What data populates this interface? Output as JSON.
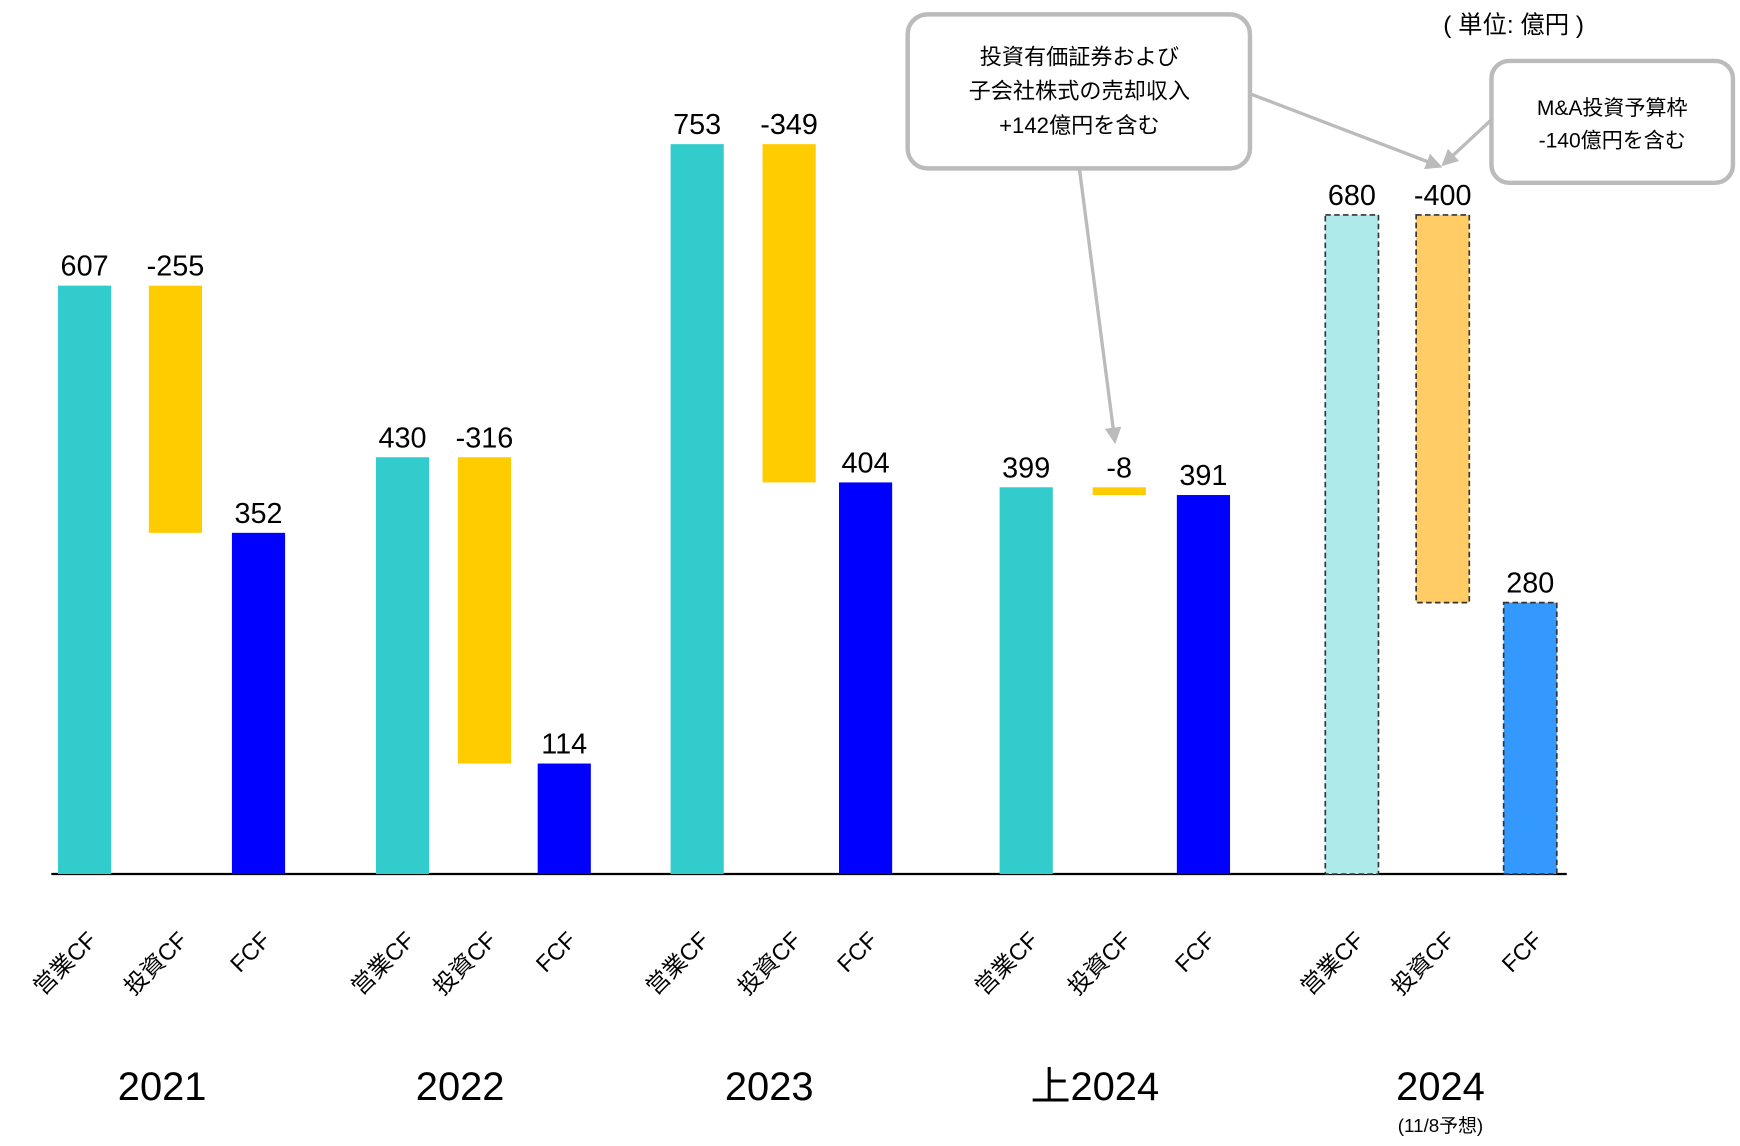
{
  "chart_data": {
    "type": "waterfall",
    "unit": "( 単位: 億円 )",
    "groups": [
      {
        "name": "2021",
        "categories": [
          "営業CF",
          "投資CF",
          "FCF"
        ],
        "values": [
          607,
          -255,
          352
        ],
        "colors": [
          "#33cccc",
          "#ffcc00",
          "#0000ff"
        ]
      },
      {
        "name": "2022",
        "categories": [
          "営業CF",
          "投資CF",
          "FCF"
        ],
        "values": [
          430,
          -316,
          114
        ],
        "colors": [
          "#33cccc",
          "#ffcc00",
          "#0000ff"
        ]
      },
      {
        "name": "2023",
        "categories": [
          "営業CF",
          "投資CF",
          "FCF"
        ],
        "values": [
          753,
          -349,
          404
        ],
        "colors": [
          "#33cccc",
          "#ffcc00",
          "#0000ff"
        ]
      },
      {
        "name": "上2024",
        "categories": [
          "営業CF",
          "投資CF",
          "FCF"
        ],
        "values": [
          399,
          -8,
          391
        ],
        "colors": [
          "#33cccc",
          "#ffcc00",
          "#0000ff"
        ]
      },
      {
        "name": "2024",
        "subtitle": "(11/8予想)",
        "categories": [
          "営業CF",
          "投資CF",
          "FCF"
        ],
        "values": [
          680,
          -400,
          280
        ],
        "colors": [
          "#aeeaea",
          "#ffcc66",
          "#3399ff"
        ],
        "dashed": true
      }
    ],
    "annotations": [
      {
        "lines": [
          "投資有価証券および",
          "子会社株式の売却収入",
          "+142億円を含む"
        ]
      },
      {
        "lines": [
          "M&A投資予算枠",
          "-140億円を含む"
        ]
      }
    ]
  }
}
